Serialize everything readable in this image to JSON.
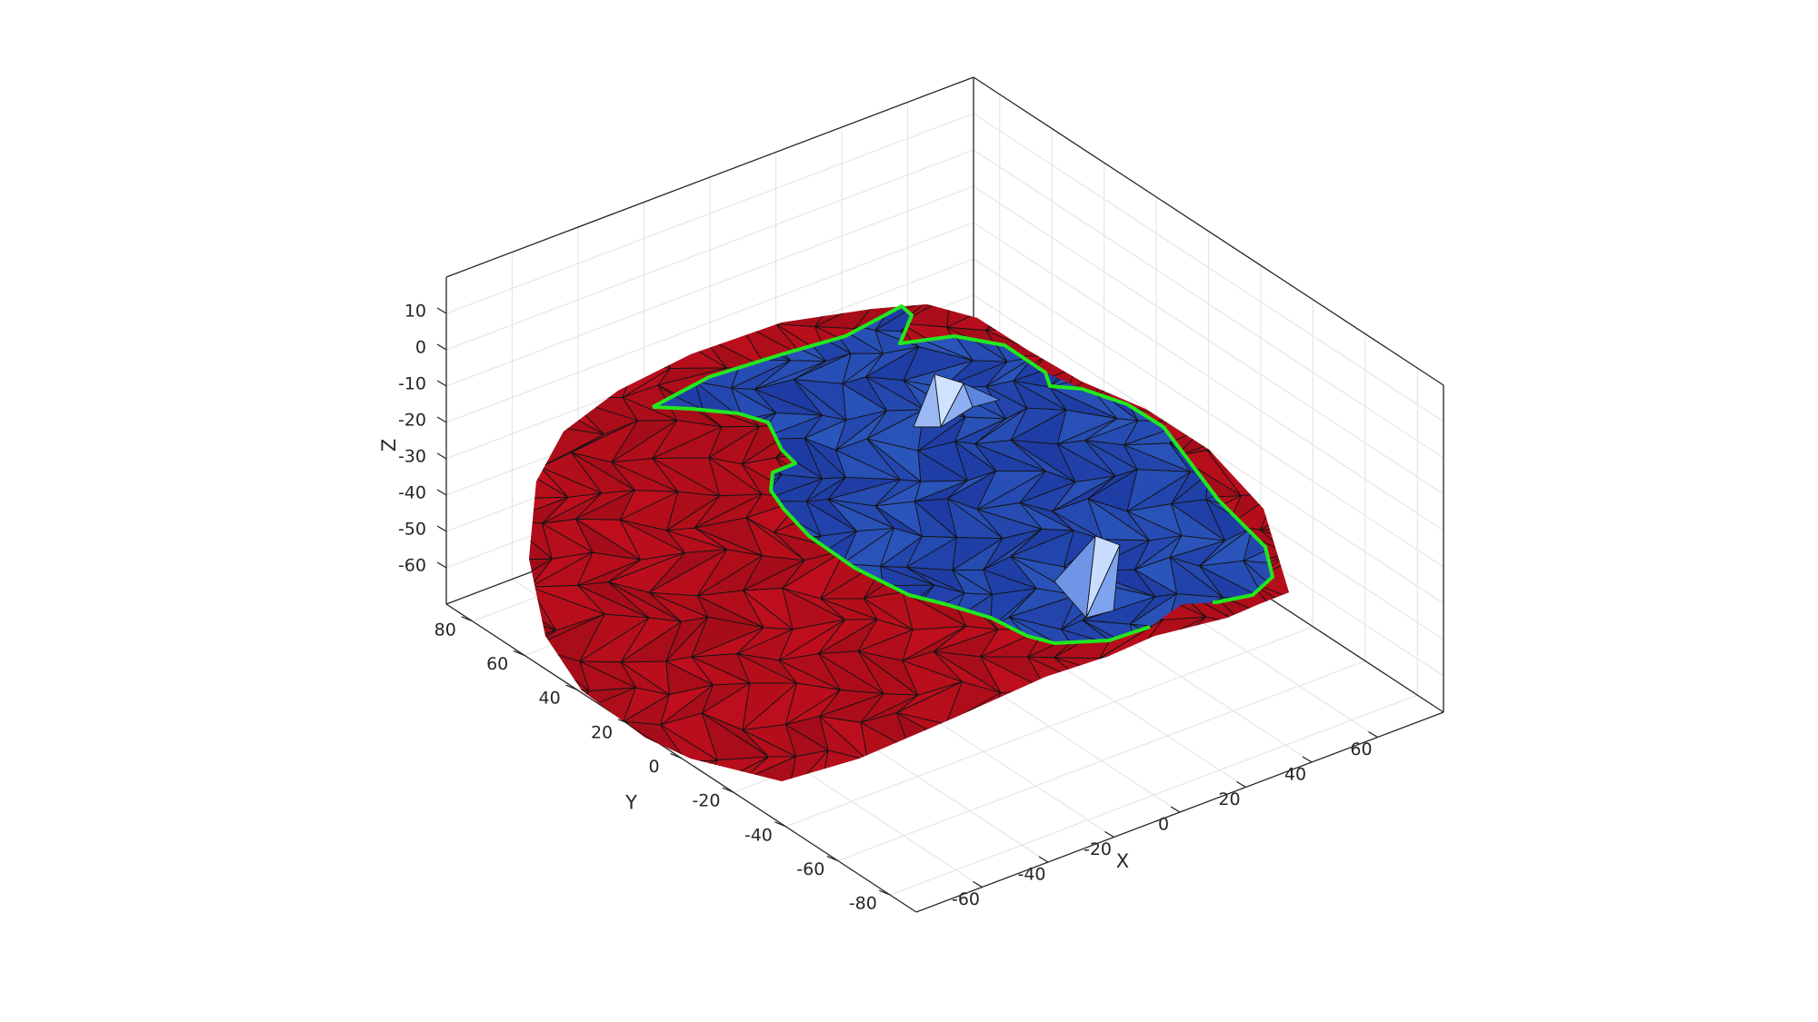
{
  "chart_data": {
    "type": "surface",
    "title": "",
    "xlabel": "X",
    "ylabel": "Y",
    "zlabel": "Z",
    "xlim": [
      -80,
      80
    ],
    "ylim": [
      -90,
      90
    ],
    "zlim": [
      -70,
      20
    ],
    "x_ticks": [
      -60,
      -40,
      -20,
      0,
      20,
      40,
      60
    ],
    "y_ticks": [
      -80,
      -60,
      -40,
      -20,
      0,
      20,
      40,
      60,
      80
    ],
    "z_ticks": [
      -60,
      -50,
      -40,
      -30,
      -20,
      -10,
      0,
      10
    ],
    "x_tick_labels": [
      "-60",
      "-40",
      "-20",
      "0",
      "20",
      "40",
      "60"
    ],
    "y_tick_labels": [
      "-80",
      "-60",
      "-40",
      "-20",
      "0",
      "20",
      "40",
      "60",
      "80"
    ],
    "z_tick_labels": [
      "-60",
      "-50",
      "-40",
      "-30",
      "-20",
      "-10",
      "0",
      "10"
    ],
    "grid": true,
    "view": "3d-perspective",
    "series": [
      {
        "role": "outer-surface",
        "color": "#b0101e"
      },
      {
        "role": "inner-region",
        "color": "#2b55b5"
      },
      {
        "role": "boundary-curve",
        "color": "#22e81e"
      }
    ]
  }
}
